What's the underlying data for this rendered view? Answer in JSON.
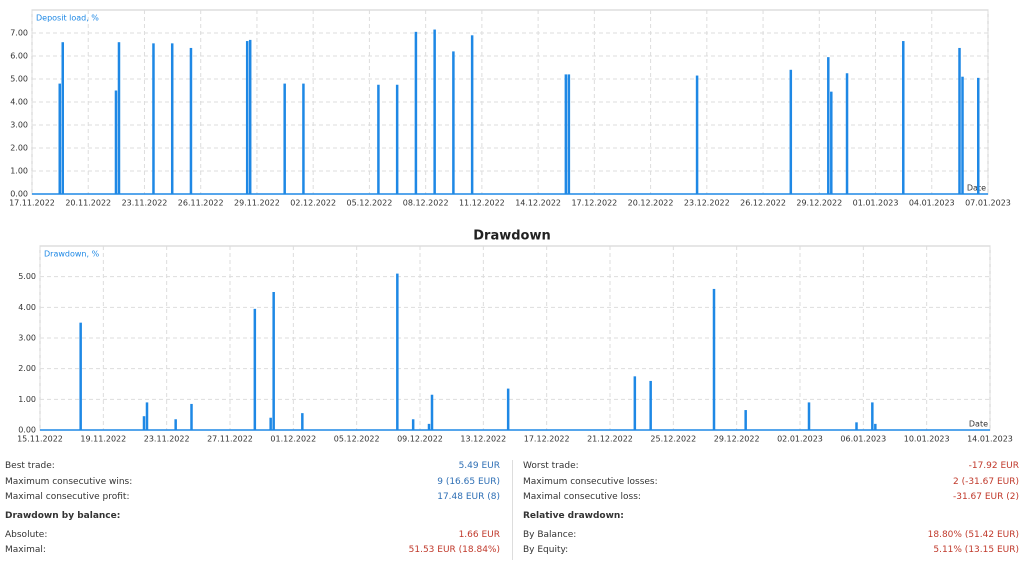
{
  "chart_data": [
    {
      "type": "bar",
      "axis_label": "Deposit load, %",
      "x_label": "Date",
      "color": "#1e88e5",
      "grid": true,
      "x": [
        "18.11.2022",
        "18.11.2022",
        "21.11.2022",
        "21.11.2022",
        "23.11.2022",
        "24.11.2022",
        "25.11.2022",
        "28.11.2022",
        "28.11.2022",
        "30.11.2022",
        "01.12.2022",
        "05.12.2022",
        "06.12.2022",
        "07.12.2022",
        "08.12.2022",
        "09.12.2022",
        "10.12.2022",
        "15.12.2022",
        "15.12.2022",
        "22.12.2022",
        "27.12.2022",
        "29.12.2022",
        "29.12.2022",
        "30.12.2022",
        "02.01.2023",
        "05.01.2023",
        "05.01.2023",
        "06.01.2023"
      ],
      "values": [
        4.8,
        6.6,
        4.5,
        6.6,
        6.55,
        6.55,
        6.35,
        6.65,
        6.7,
        4.8,
        4.8,
        4.75,
        4.75,
        7.05,
        7.15,
        6.2,
        6.9,
        5.2,
        5.2,
        5.15,
        5.4,
        5.95,
        4.45,
        5.25,
        6.65,
        6.35,
        5.1,
        5.05
      ],
      "xlim": [
        "17.11.2022",
        "07.01.2023"
      ],
      "xticks": [
        "17.11.2022",
        "20.11.2022",
        "23.11.2022",
        "26.11.2022",
        "29.11.2022",
        "02.12.2022",
        "05.12.2022",
        "08.12.2022",
        "11.12.2022",
        "14.12.2022",
        "17.12.2022",
        "20.12.2022",
        "23.12.2022",
        "26.12.2022",
        "29.12.2022",
        "01.01.2023",
        "04.01.2023",
        "07.01.2023"
      ],
      "ylim": [
        0,
        8
      ],
      "yticks": [
        {
          "value": 0,
          "label": "0.00"
        },
        {
          "value": 1,
          "label": "1.00"
        },
        {
          "value": 2,
          "label": "2.00"
        },
        {
          "value": 3,
          "label": "3.00"
        },
        {
          "value": 4,
          "label": "4.00"
        },
        {
          "value": 5,
          "label": "5.00"
        },
        {
          "value": 6,
          "label": "6.00"
        },
        {
          "value": 7,
          "label": "7.00"
        }
      ]
    },
    {
      "type": "bar",
      "title": "Drawdown",
      "axis_label": "Drawdown, %",
      "x_label": "Date",
      "color": "#1e88e5",
      "grid": true,
      "x": [
        "17.11.2022",
        "21.11.2022",
        "21.11.2022",
        "23.11.2022",
        "24.11.2022",
        "28.11.2022",
        "29.11.2022",
        "29.11.2022",
        "01.12.2022",
        "07.12.2022",
        "08.12.2022",
        "09.12.2022",
        "09.12.2022",
        "14.12.2022",
        "22.12.2022",
        "23.12.2022",
        "27.12.2022",
        "29.12.2022",
        "02.01.2023",
        "05.01.2023",
        "06.01.2023",
        "06.01.2023"
      ],
      "values": [
        3.5,
        0.45,
        0.9,
        0.35,
        0.85,
        3.95,
        0.4,
        4.5,
        0.55,
        5.1,
        0.35,
        0.2,
        1.15,
        1.35,
        1.75,
        1.6,
        4.6,
        0.65,
        0.9,
        0.25,
        0.9,
        0.2
      ],
      "xlim": [
        "15.11.2022",
        "14.01.2023"
      ],
      "xticks": [
        "15.11.2022",
        "19.11.2022",
        "23.11.2022",
        "27.11.2022",
        "01.12.2022",
        "05.12.2022",
        "09.12.2022",
        "13.12.2022",
        "17.12.2022",
        "21.12.2022",
        "25.12.2022",
        "29.12.2022",
        "02.01.2023",
        "06.01.2023",
        "10.01.2023",
        "14.01.2023"
      ],
      "ylim": [
        0,
        6
      ],
      "yticks": [
        {
          "value": 0,
          "label": "0.00"
        },
        {
          "value": 1,
          "label": "1.00"
        },
        {
          "value": 2,
          "label": "2.00"
        },
        {
          "value": 3,
          "label": "3.00"
        },
        {
          "value": 4,
          "label": "4.00"
        },
        {
          "value": 5,
          "label": "5.00"
        }
      ]
    }
  ],
  "stats": {
    "columns": [
      {
        "rows": [
          {
            "label": "Best trade:",
            "value": "5.49 EUR",
            "color": "#2e6fb5"
          },
          {
            "label": "Maximum consecutive wins:",
            "value": "9 (16.65 EUR)",
            "color": "#2e6fb5"
          },
          {
            "label": "Maximal consecutive profit:",
            "value": "17.48 EUR (8)",
            "color": "#2e6fb5"
          }
        ],
        "heading": "Drawdown by balance:",
        "rows2": [
          {
            "label": "Absolute:",
            "value": "1.66 EUR",
            "color": "#c0392b"
          },
          {
            "label": "Maximal:",
            "value": "51.53 EUR (18.84%)",
            "color": "#c0392b"
          }
        ]
      },
      {
        "rows": [
          {
            "label": "Worst trade:",
            "value": "-17.92 EUR",
            "color": "#c0392b"
          },
          {
            "label": "Maximum consecutive losses:",
            "value": "2 (-31.67 EUR)",
            "color": "#c0392b"
          },
          {
            "label": "Maximal consecutive loss:",
            "value": "-31.67 EUR (2)",
            "color": "#c0392b"
          }
        ],
        "heading": "Relative drawdown:",
        "rows2": [
          {
            "label": "By Balance:",
            "value": "18.80% (51.42 EUR)",
            "color": "#c0392b"
          },
          {
            "label": "By Equity:",
            "value": "5.11% (13.15 EUR)",
            "color": "#c0392b"
          }
        ]
      }
    ]
  }
}
